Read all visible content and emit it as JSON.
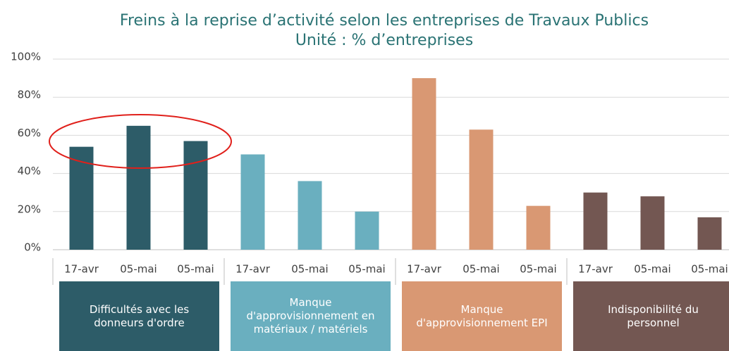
{
  "chart_data": {
    "type": "bar",
    "title": "Freins à la reprise d’activité selon les entreprises de Travaux Publics",
    "subtitle": "Unité : % d’entreprises",
    "groups": [
      {
        "label": "Difficultés avec les donneurs d'ordre",
        "color": "#2d5c68",
        "categories": [
          "17-avr",
          "05-mai",
          "05-mai"
        ],
        "values": [
          54,
          65,
          57
        ]
      },
      {
        "label": "Manque d'approvisionnement en matériaux / matériels",
        "color": "#6aafbf",
        "categories": [
          "17-avr",
          "05-mai",
          "05-mai"
        ],
        "values": [
          50,
          36,
          20
        ]
      },
      {
        "label": "Manque d'approvisionnement EPI",
        "color": "#d99873",
        "categories": [
          "17-avr",
          "05-mai",
          "05-mai"
        ],
        "values": [
          90,
          63,
          23
        ]
      },
      {
        "label": "Indisponibilité du personnel",
        "color": "#735752",
        "categories": [
          "17-avr",
          "05-mai",
          "05-mai"
        ],
        "values": [
          30,
          28,
          17
        ]
      }
    ],
    "ylim": [
      0,
      100
    ],
    "yticks": [
      {
        "value": 0,
        "label": "0%"
      },
      {
        "value": 20,
        "label": "20%"
      },
      {
        "value": 40,
        "label": "40%"
      },
      {
        "value": 60,
        "label": "60%"
      },
      {
        "value": 80,
        "label": "80%"
      },
      {
        "value": 100,
        "label": "100%"
      }
    ],
    "grid": true
  }
}
